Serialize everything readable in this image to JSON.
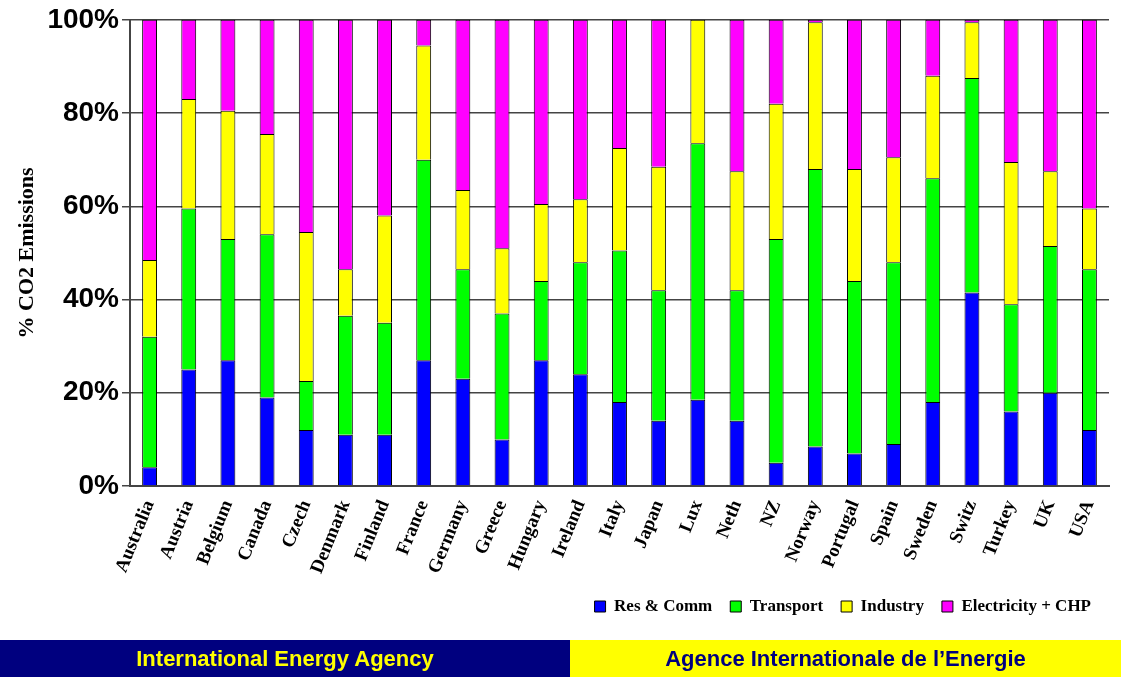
{
  "chart_data": {
    "type": "bar",
    "stacked": true,
    "ylabel": "% CO2 Emissions",
    "categories": [
      "Australia",
      "Austria",
      "Belgium",
      "Canada",
      "Czech",
      "Denmark",
      "Finland",
      "France",
      "Germany",
      "Greece",
      "Hungary",
      "Ireland",
      "Italy",
      "Japan",
      "Lux",
      "Neth",
      "NZ",
      "Norway",
      "Portugal",
      "Spain",
      "Sweden",
      "Switz",
      "Turkey",
      "UK",
      "USA"
    ],
    "series": [
      {
        "name": "Res & Comm",
        "color": "#0000ff",
        "values": [
          4,
          25,
          27,
          19,
          12,
          11,
          11,
          27,
          23,
          10,
          27,
          24,
          18,
          14,
          18.5,
          14,
          5,
          8.5,
          7,
          9,
          18,
          41.5,
          16,
          20,
          12
        ]
      },
      {
        "name": "Transport",
        "color": "#00ff00",
        "values": [
          28,
          34.5,
          26,
          35,
          10.5,
          25.5,
          24,
          43,
          23.5,
          27,
          17,
          24,
          32.5,
          28,
          55,
          28,
          48,
          59.5,
          37,
          39,
          48,
          46,
          23,
          31.5,
          34.5
        ]
      },
      {
        "name": "Industry",
        "color": "#ffff00",
        "values": [
          16.5,
          23.5,
          27.5,
          21.5,
          32,
          10,
          23,
          24.5,
          17,
          14,
          16.5,
          13.5,
          22,
          26.5,
          26.5,
          25.5,
          29,
          31.5,
          24,
          22.5,
          22,
          12,
          30.5,
          16,
          13
        ]
      },
      {
        "name": "Electricity + CHP",
        "color": "#ff00ff",
        "values": [
          51.5,
          17,
          19.5,
          24.5,
          45.5,
          53.5,
          42,
          5.5,
          36.5,
          49,
          39.5,
          38.5,
          27.5,
          31.5,
          0,
          32.5,
          18,
          0.5,
          32,
          29.5,
          12,
          0.5,
          30.5,
          32.5,
          40.5
        ]
      }
    ],
    "ylim": [
      0,
      100
    ],
    "yticks": [
      {
        "value": 0,
        "label": "0%"
      },
      {
        "value": 20,
        "label": "20%"
      },
      {
        "value": 40,
        "label": "40%"
      },
      {
        "value": 60,
        "label": "60%"
      },
      {
        "value": 80,
        "label": "80%"
      },
      {
        "value": 100,
        "label": "100%"
      }
    ],
    "grid": "y",
    "legend": "bottom right",
    "annotations": [
      "International Energy Agency",
      "Agence Internationale de l’Energie"
    ]
  }
}
